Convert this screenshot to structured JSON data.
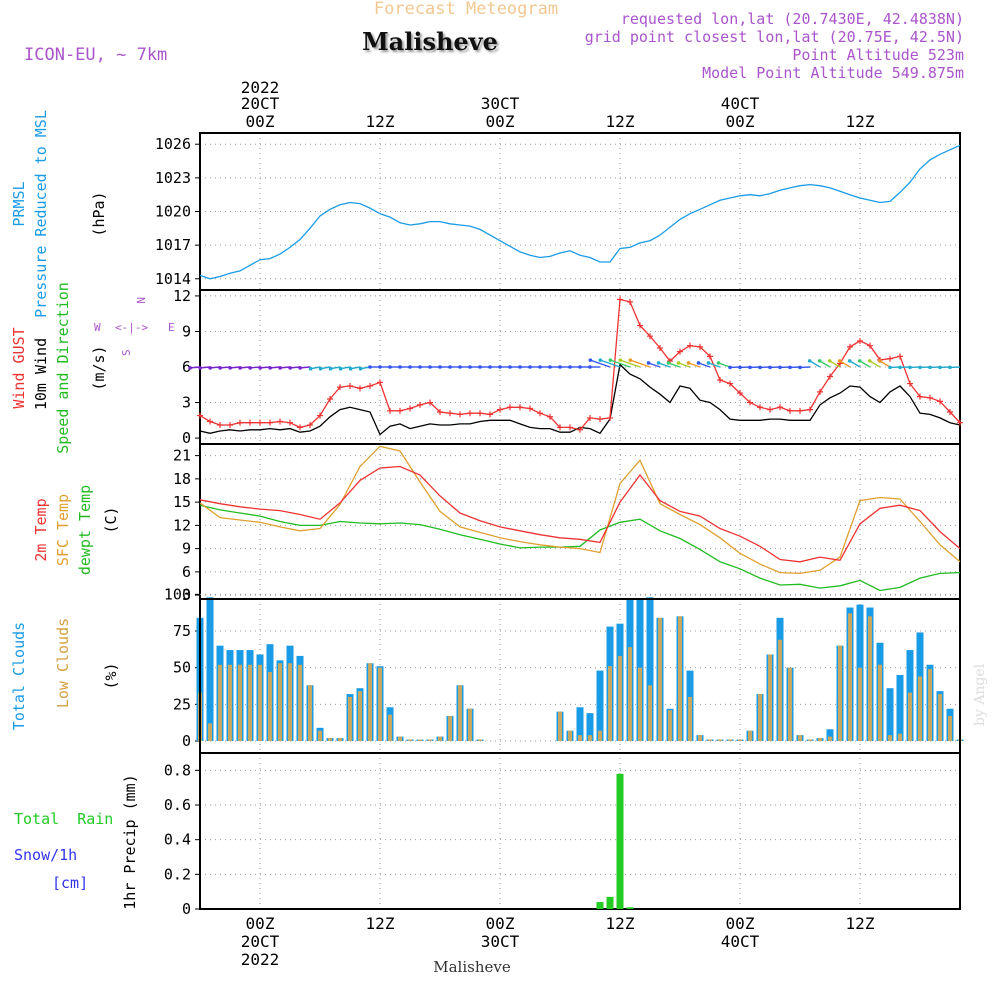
{
  "header": {
    "forecast_title": "Forecast Meteogram",
    "place": "Malisheve",
    "model": "ICON-EU, ~ 7km",
    "requested": "requested lon,lat (20.7430E, 42.4838N)",
    "grid_point": "grid point closest lon,lat (20.75E, 42.5N)",
    "point_alt": "Point Altitude 523m",
    "model_alt": "Model Point Altitude 549.875m"
  },
  "footer": {
    "place": "Malisheve",
    "credit": "by Angel"
  },
  "colors": {
    "pressure": "#1a9be6",
    "gust": "#ee3333",
    "wind": "#000000",
    "temp2m": "#ee3333",
    "sfc": "#e0a030",
    "dew": "#22bb22",
    "total_cloud": "#1a9be6",
    "low_cloud": "#c8a860",
    "rain": "#22cc22",
    "snow": "#3333ee",
    "label_purple": "#aa55cc"
  },
  "time_axis": {
    "top_year": "2022",
    "top_ticks": [
      [
        "20CT",
        "00Z"
      ],
      [
        "12Z"
      ],
      [
        "30CT",
        "00Z"
      ],
      [
        "12Z"
      ],
      [
        "40CT",
        "00Z"
      ],
      [
        "12Z"
      ]
    ],
    "bottom_ticks": [
      [
        "00Z",
        "20CT",
        "2022"
      ],
      [
        "12Z"
      ],
      [
        "00Z",
        "30CT"
      ],
      [
        "12Z"
      ],
      [
        "00Z",
        "40CT"
      ],
      [
        "12Z"
      ]
    ],
    "tick_hours": [
      0,
      12,
      24,
      36,
      48,
      60
    ],
    "start_hour": -6,
    "end_hour": 70
  },
  "chart_data": [
    {
      "type": "line",
      "title": "PRMSL Pressure Reduced to MSL",
      "ylabel": "(hPa)",
      "label_lines": [
        "PRMSL",
        "Pressure Reduced to MSL"
      ],
      "ylim": [
        1013,
        1027
      ],
      "yticks": [
        1014,
        1017,
        1020,
        1023,
        1026
      ],
      "series": [
        {
          "name": "PRMSL",
          "x": [
            -6,
            -5,
            -4,
            -3,
            -2,
            -1,
            0,
            1,
            2,
            3,
            4,
            5,
            6,
            7,
            8,
            9,
            10,
            11,
            12,
            13,
            14,
            15,
            16,
            17,
            18,
            19,
            20,
            21,
            22,
            23,
            24,
            25,
            26,
            27,
            28,
            29,
            30,
            31,
            32,
            33,
            34,
            35,
            36,
            37,
            38,
            39,
            40,
            41,
            42,
            43,
            44,
            45,
            46,
            47,
            48,
            49,
            50,
            51,
            52,
            53,
            54,
            55,
            56,
            57,
            58,
            59,
            60,
            61,
            62,
            63,
            64,
            65,
            66,
            67,
            68,
            69,
            70
          ],
          "values": [
            1014.3,
            1014.0,
            1014.2,
            1014.5,
            1014.7,
            1015.2,
            1015.7,
            1015.8,
            1016.2,
            1016.8,
            1017.5,
            1018.5,
            1019.6,
            1020.2,
            1020.6,
            1020.8,
            1020.7,
            1020.3,
            1019.8,
            1019.5,
            1019.0,
            1018.8,
            1018.9,
            1019.1,
            1019.1,
            1018.9,
            1018.8,
            1018.7,
            1018.4,
            1017.9,
            1017.4,
            1016.9,
            1016.4,
            1016.1,
            1015.9,
            1016.0,
            1016.3,
            1016.5,
            1016.1,
            1015.9,
            1015.5,
            1015.5,
            1016.7,
            1016.8,
            1017.2,
            1017.4,
            1017.9,
            1018.6,
            1019.3,
            1019.8,
            1020.2,
            1020.6,
            1021.0,
            1021.2,
            1021.4,
            1021.5,
            1021.4,
            1021.6,
            1021.9,
            1022.1,
            1022.3,
            1022.4,
            1022.3,
            1022.1,
            1021.8,
            1021.5,
            1021.2,
            1021.0,
            1020.8,
            1020.9,
            1021.7,
            1022.6,
            1023.8,
            1024.6,
            1025.1,
            1025.5,
            1025.9
          ]
        }
      ]
    },
    {
      "type": "line",
      "title": "Wind GUST, 10m Wind Speed and Direction",
      "ylabel": "(m/s)",
      "label_lines": [
        "Wind GUST",
        "10m Wind",
        "Speed and Direction"
      ],
      "compass": {
        "n": "N",
        "w": "W",
        "e": "E",
        "s": "S",
        "arrow": "<-|->"
      },
      "ylim": [
        -0.5,
        12.5
      ],
      "yticks": [
        0,
        3,
        6,
        9,
        12
      ],
      "series": [
        {
          "name": "Wind GUST",
          "x": [
            -6,
            -5,
            -4,
            -3,
            -2,
            -1,
            0,
            1,
            2,
            3,
            4,
            5,
            6,
            7,
            8,
            9,
            10,
            11,
            12,
            13,
            14,
            15,
            16,
            17,
            18,
            19,
            20,
            21,
            22,
            23,
            24,
            25,
            26,
            27,
            28,
            29,
            30,
            31,
            32,
            33,
            34,
            35,
            36,
            37,
            38,
            39,
            40,
            41,
            42,
            43,
            44,
            45,
            46,
            47,
            48,
            49,
            50,
            51,
            52,
            53,
            54,
            55,
            56,
            57,
            58,
            59,
            60,
            61,
            62,
            63,
            64,
            65,
            66,
            67,
            68,
            69,
            70
          ],
          "values": [
            1.9,
            1.4,
            1.1,
            1.1,
            1.3,
            1.3,
            1.3,
            1.3,
            1.4,
            1.3,
            0.9,
            1.1,
            1.9,
            3.3,
            4.3,
            4.4,
            4.2,
            4.4,
            4.7,
            2.3,
            2.3,
            2.5,
            2.8,
            3.0,
            2.2,
            2.1,
            2.0,
            2.1,
            2.1,
            2.0,
            2.4,
            2.6,
            2.6,
            2.5,
            2.1,
            1.8,
            0.9,
            0.9,
            0.7,
            1.7,
            1.6,
            1.7,
            11.7,
            11.5,
            9.5,
            8.6,
            7.6,
            6.5,
            7.3,
            7.8,
            7.7,
            6.9,
            4.9,
            4.6,
            3.8,
            3.0,
            2.6,
            2.4,
            2.6,
            2.3,
            2.3,
            2.4,
            3.9,
            5.2,
            6.3,
            7.7,
            8.2,
            7.8,
            6.6,
            6.7,
            6.9,
            4.6,
            3.5,
            3.4,
            3.1,
            2.2,
            1.3
          ]
        },
        {
          "name": "10m Wind",
          "x": [
            -6,
            -5,
            -4,
            -3,
            -2,
            -1,
            0,
            1,
            2,
            3,
            4,
            5,
            6,
            7,
            8,
            9,
            10,
            11,
            12,
            13,
            14,
            15,
            16,
            17,
            18,
            19,
            20,
            21,
            22,
            23,
            24,
            25,
            26,
            27,
            28,
            29,
            30,
            31,
            32,
            33,
            34,
            35,
            36,
            37,
            38,
            39,
            40,
            41,
            42,
            43,
            44,
            45,
            46,
            47,
            48,
            49,
            50,
            51,
            52,
            53,
            54,
            55,
            56,
            57,
            58,
            59,
            60,
            61,
            62,
            63,
            64,
            65,
            66,
            67,
            68,
            69,
            70
          ],
          "values": [
            0.6,
            0.4,
            0.6,
            0.7,
            0.6,
            0.7,
            0.7,
            0.8,
            0.7,
            0.8,
            0.5,
            0.6,
            1.0,
            1.8,
            2.4,
            2.6,
            2.4,
            2.2,
            0.3,
            1.0,
            1.2,
            0.8,
            1.0,
            1.2,
            1.1,
            1.1,
            1.2,
            1.2,
            1.4,
            1.5,
            1.5,
            1.5,
            1.2,
            0.9,
            0.8,
            0.8,
            0.5,
            0.5,
            0.9,
            0.8,
            0.4,
            1.6,
            6.2,
            5.4,
            5.0,
            4.3,
            3.7,
            3.0,
            4.4,
            4.2,
            3.2,
            3.0,
            2.4,
            1.6,
            1.5,
            1.5,
            1.5,
            1.6,
            1.6,
            1.5,
            1.5,
            1.5,
            2.8,
            3.4,
            3.8,
            4.4,
            4.3,
            3.5,
            3.0,
            3.9,
            4.4,
            3.5,
            2.1,
            2.0,
            1.7,
            1.3,
            1.1
          ]
        }
      ]
    },
    {
      "type": "line",
      "title": "2m Temp, SFC Temp, dewpt Temp",
      "ylabel": "(C)",
      "label_lines": [
        "2m Temp",
        "SFC Temp",
        "dewpt Temp"
      ],
      "ylim": [
        2.5,
        22.5
      ],
      "yticks": [
        3,
        6,
        9,
        12,
        15,
        18,
        21
      ],
      "series": [
        {
          "name": "2m Temp",
          "x": [
            -6,
            -4,
            -2,
            0,
            2,
            4,
            6,
            8,
            10,
            12,
            14,
            16,
            18,
            20,
            22,
            24,
            26,
            28,
            30,
            32,
            34,
            36,
            38,
            40,
            42,
            44,
            46,
            48,
            50,
            52,
            54,
            56,
            58,
            60,
            62,
            64,
            66,
            68,
            70
          ],
          "values": [
            15.3,
            14.8,
            14.4,
            14.1,
            13.9,
            13.4,
            12.8,
            14.9,
            17.8,
            19.4,
            19.6,
            18.5,
            15.8,
            13.6,
            12.6,
            11.8,
            11.3,
            10.8,
            10.4,
            10.2,
            9.8,
            15.0,
            18.5,
            15.2,
            13.8,
            13.2,
            11.6,
            10.6,
            9.3,
            7.6,
            7.3,
            7.9,
            7.5,
            12.2,
            14.2,
            14.6,
            13.9,
            11.2,
            9.0
          ]
        },
        {
          "name": "SFC Temp",
          "x": [
            -6,
            -4,
            -2,
            0,
            2,
            4,
            6,
            8,
            10,
            12,
            14,
            16,
            18,
            20,
            22,
            24,
            26,
            28,
            30,
            32,
            34,
            36,
            38,
            40,
            42,
            44,
            46,
            48,
            50,
            52,
            54,
            56,
            58,
            60,
            62,
            64,
            66,
            68,
            70
          ],
          "values": [
            14.9,
            13.0,
            12.7,
            12.4,
            11.8,
            11.3,
            11.6,
            14.7,
            19.6,
            22.2,
            21.6,
            17.6,
            13.8,
            11.8,
            11.1,
            10.4,
            9.9,
            9.5,
            9.2,
            9.0,
            8.5,
            17.4,
            20.4,
            14.8,
            13.4,
            12.1,
            10.4,
            8.4,
            7.0,
            5.9,
            5.8,
            6.2,
            7.9,
            15.2,
            15.6,
            15.4,
            12.5,
            9.5,
            7.3
          ]
        },
        {
          "name": "dewpt Temp",
          "x": [
            -6,
            -4,
            -2,
            0,
            2,
            4,
            6,
            8,
            10,
            12,
            14,
            16,
            18,
            20,
            22,
            24,
            26,
            28,
            30,
            32,
            34,
            36,
            38,
            40,
            42,
            44,
            46,
            48,
            50,
            52,
            54,
            56,
            58,
            60,
            62,
            64,
            66,
            68,
            70
          ],
          "values": [
            14.6,
            14.0,
            13.6,
            13.2,
            12.5,
            12.0,
            12.0,
            12.5,
            12.3,
            12.2,
            12.3,
            12.1,
            11.5,
            10.8,
            10.2,
            9.6,
            9.1,
            9.2,
            9.2,
            9.3,
            11.4,
            12.4,
            12.8,
            11.3,
            10.3,
            8.9,
            7.3,
            6.4,
            5.2,
            4.3,
            4.4,
            3.9,
            4.2,
            4.9,
            3.6,
            4.0,
            5.2,
            5.8,
            5.9
          ]
        }
      ]
    },
    {
      "type": "bar",
      "title": "Total Clouds, Low Clouds",
      "ylabel": "(%)",
      "label_lines": [
        "Total Clouds",
        "Low Clouds"
      ],
      "ylim": [
        0,
        105
      ],
      "yticks": [
        0,
        25,
        50,
        75,
        100
      ],
      "x": [
        -6,
        -5,
        -4,
        -3,
        -2,
        -1,
        0,
        1,
        2,
        3,
        4,
        5,
        6,
        7,
        8,
        9,
        10,
        11,
        12,
        13,
        14,
        15,
        16,
        17,
        18,
        19,
        20,
        21,
        22,
        23,
        24,
        25,
        26,
        27,
        28,
        29,
        30,
        31,
        32,
        33,
        34,
        35,
        36,
        37,
        38,
        39,
        40,
        41,
        42,
        43,
        44,
        45,
        46,
        47,
        48,
        49,
        50,
        51,
        52,
        53,
        54,
        55,
        56,
        57,
        58,
        59,
        60,
        61,
        62,
        63,
        64,
        65,
        66,
        67,
        68,
        69,
        70
      ],
      "series": [
        {
          "name": "Total Clouds",
          "values": [
            84,
            98,
            65,
            62,
            62,
            62,
            59,
            66,
            55,
            65,
            58,
            38,
            9,
            2,
            2,
            32,
            36,
            53,
            51,
            23,
            3,
            1,
            1,
            1,
            3,
            17,
            38,
            22,
            1,
            0,
            0,
            0,
            0,
            0,
            0,
            0,
            20,
            7,
            23,
            19,
            48,
            78,
            80,
            97,
            97,
            98,
            84,
            22,
            85,
            48,
            4,
            1,
            1,
            1,
            1,
            7,
            32,
            59,
            84,
            50,
            4,
            1,
            2,
            8,
            65,
            91,
            93,
            91,
            67,
            36,
            45,
            62,
            74,
            52,
            34,
            22,
            1
          ],
          "low": [
            33,
            12,
            52,
            52,
            52,
            52,
            52,
            47,
            53,
            53,
            52,
            38,
            7,
            2,
            2,
            30,
            34,
            53,
            50,
            18,
            3,
            1,
            1,
            1,
            3,
            17,
            38,
            22,
            1,
            0,
            0,
            0,
            0,
            0,
            0,
            0,
            20,
            7,
            4,
            4,
            7,
            51,
            58,
            64,
            50,
            38,
            84,
            21,
            85,
            30,
            4,
            1,
            1,
            1,
            1,
            7,
            32,
            59,
            69,
            50,
            4,
            1,
            2,
            3,
            65,
            87,
            50,
            85,
            52,
            4,
            5,
            33,
            44,
            49,
            32,
            17,
            1
          ]
        }
      ]
    },
    {
      "type": "bar",
      "title": "1hr Precip (mm)",
      "ylabel": "1hr Precip (mm)",
      "label_lines": [
        "Total  Rain",
        "Snow/1h",
        "[cm]"
      ],
      "ylim": [
        0,
        0.9
      ],
      "yticks": [
        "0",
        "0.2",
        "0.4",
        "0.6",
        "0.8"
      ],
      "ytick_values": [
        0,
        0.2,
        0.4,
        0.6,
        0.8
      ],
      "x": [
        34,
        35,
        36,
        37
      ],
      "series": [
        {
          "name": "Total Rain",
          "values": [
            0.04,
            0.07,
            0.78,
            0.01
          ]
        }
      ]
    }
  ]
}
